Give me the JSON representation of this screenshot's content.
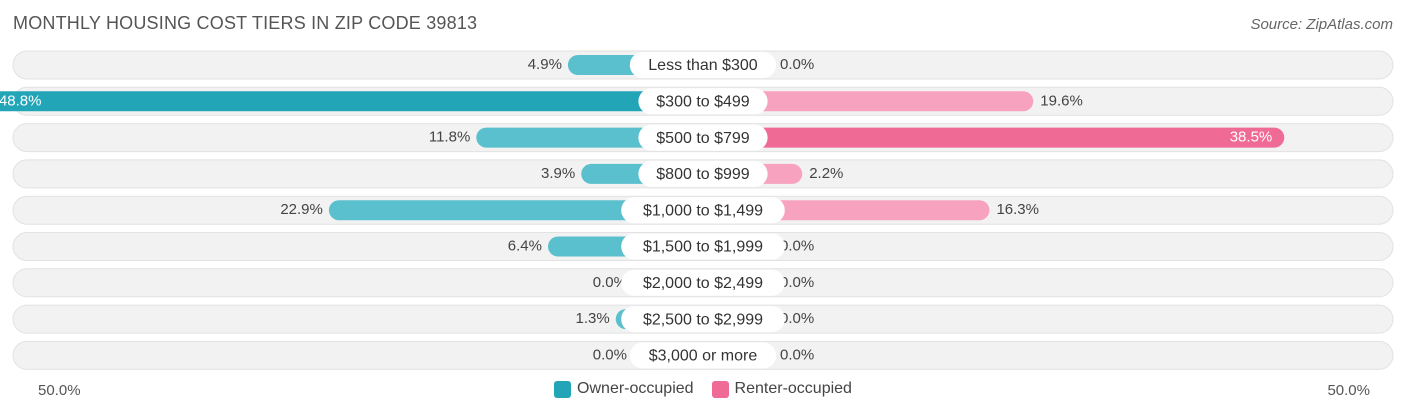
{
  "title": "MONTHLY HOUSING COST TIERS IN ZIP CODE 39813",
  "source": "Source: ZipAtlas.com",
  "colors": {
    "owner": "#5bc0cd",
    "owner_strong": "#23a5b8",
    "renter": "#f7a3bf",
    "renter_strong": "#f06a96",
    "row_bg": "#f2f2f2",
    "row_border": "#e2e2e2"
  },
  "axis": {
    "left_label": "50.0%",
    "right_label": "50.0%"
  },
  "legend": {
    "owner": "Owner-occupied",
    "renter": "Renter-occupied"
  },
  "chart_data": {
    "type": "bar",
    "orientation": "horizontal-diverging",
    "categories": [
      "Less than $300",
      "$300 to $499",
      "$500 to $799",
      "$800 to $999",
      "$1,000 to $1,499",
      "$1,500 to $1,999",
      "$2,000 to $2,499",
      "$2,500 to $2,999",
      "$3,000 or more"
    ],
    "series": [
      {
        "name": "Owner-occupied",
        "values": [
          4.9,
          48.8,
          11.8,
          3.9,
          22.9,
          6.4,
          0.0,
          1.3,
          0.0
        ],
        "labels": [
          "4.9%",
          "48.8%",
          "11.8%",
          "3.9%",
          "22.9%",
          "6.4%",
          "0.0%",
          "1.3%",
          "0.0%"
        ]
      },
      {
        "name": "Renter-occupied",
        "values": [
          0.0,
          19.6,
          38.5,
          2.2,
          16.3,
          0.0,
          0.0,
          0.0,
          0.0
        ],
        "labels": [
          "0.0%",
          "19.6%",
          "38.5%",
          "2.2%",
          "16.3%",
          "0.0%",
          "0.0%",
          "0.0%",
          "0.0%"
        ]
      }
    ],
    "xlim": [
      -50,
      50
    ],
    "legend_position": "bottom-center"
  }
}
